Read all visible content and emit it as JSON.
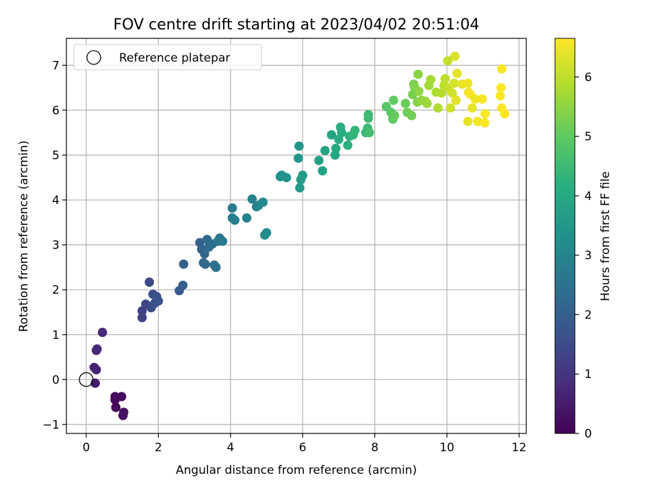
{
  "chart_data": {
    "type": "scatter",
    "title": "FOV centre drift starting at 2023/04/02 20:51:04",
    "xlabel": "Angular distance from reference (arcmin)",
    "ylabel": "Rotation from reference (arcmin)",
    "colorbar_label": "Hours from first FF file",
    "xlim": [
      -0.55,
      12.2
    ],
    "ylim": [
      -1.2,
      7.6
    ],
    "clim": [
      0,
      6.65
    ],
    "colormap": "viridis",
    "grid": true,
    "legend": {
      "position": "top-left",
      "entries": [
        "Reference platepar"
      ]
    },
    "xticks": [
      0,
      2,
      4,
      6,
      8,
      10,
      12
    ],
    "yticks": [
      -1,
      0,
      1,
      2,
      3,
      4,
      5,
      6,
      7
    ],
    "cticks": [
      0,
      1,
      2,
      3,
      4,
      5,
      6
    ],
    "reference_point": {
      "x": 0,
      "y": 0
    },
    "points": [
      [
        0.8,
        -0.45,
        0.1
      ],
      [
        0.8,
        -0.38,
        0.15
      ],
      [
        0.82,
        -0.62,
        0.12
      ],
      [
        0.98,
        -0.38,
        0.2
      ],
      [
        1.02,
        -0.8,
        0.25
      ],
      [
        1.04,
        -0.73,
        0.3
      ],
      [
        0.25,
        -0.08,
        0.55
      ],
      [
        0.22,
        0.27,
        0.6
      ],
      [
        0.28,
        0.22,
        0.65
      ],
      [
        0.28,
        0.65,
        0.7
      ],
      [
        0.3,
        0.68,
        0.75
      ],
      [
        0.45,
        1.05,
        0.8
      ],
      [
        1.55,
        1.53,
        1.3
      ],
      [
        1.55,
        1.38,
        1.35
      ],
      [
        1.65,
        1.68,
        1.4
      ],
      [
        1.75,
        2.17,
        1.45
      ],
      [
        1.8,
        1.6,
        1.5
      ],
      [
        1.85,
        1.9,
        1.55
      ],
      [
        1.9,
        1.7,
        1.6
      ],
      [
        1.95,
        1.85,
        1.65
      ],
      [
        2.0,
        1.75,
        1.7
      ],
      [
        2.58,
        1.98,
        1.9
      ],
      [
        2.68,
        2.1,
        1.95
      ],
      [
        2.7,
        2.57,
        2.0
      ],
      [
        3.15,
        3.05,
        2.05
      ],
      [
        3.2,
        2.9,
        2.1
      ],
      [
        3.25,
        2.6,
        2.15
      ],
      [
        3.28,
        2.8,
        2.2
      ],
      [
        3.3,
        2.57,
        2.25
      ],
      [
        3.35,
        3.12,
        2.3
      ],
      [
        3.4,
        2.95,
        2.35
      ],
      [
        3.5,
        3.02,
        2.4
      ],
      [
        3.55,
        2.55,
        2.45
      ],
      [
        3.6,
        2.5,
        2.5
      ],
      [
        3.65,
        3.08,
        2.55
      ],
      [
        3.7,
        3.15,
        2.6
      ],
      [
        3.78,
        3.08,
        2.65
      ],
      [
        4.05,
        3.82,
        2.75
      ],
      [
        4.05,
        3.6,
        2.8
      ],
      [
        4.12,
        3.55,
        2.85
      ],
      [
        4.45,
        3.6,
        2.9
      ],
      [
        4.6,
        4.02,
        2.95
      ],
      [
        4.72,
        3.85,
        3.0
      ],
      [
        4.78,
        3.88,
        3.05
      ],
      [
        4.9,
        3.95,
        3.1
      ],
      [
        4.95,
        3.22,
        3.15
      ],
      [
        5.0,
        3.27,
        3.2
      ],
      [
        5.38,
        4.52,
        3.3
      ],
      [
        5.42,
        4.55,
        3.35
      ],
      [
        5.55,
        4.5,
        3.4
      ],
      [
        5.88,
        4.93,
        3.45
      ],
      [
        5.9,
        5.2,
        3.5
      ],
      [
        5.92,
        4.27,
        3.55
      ],
      [
        5.95,
        4.45,
        3.6
      ],
      [
        6.0,
        4.55,
        3.65
      ],
      [
        6.45,
        4.88,
        3.75
      ],
      [
        6.55,
        4.65,
        3.8
      ],
      [
        6.62,
        5.1,
        3.85
      ],
      [
        6.8,
        5.45,
        3.9
      ],
      [
        6.9,
        5.0,
        3.95
      ],
      [
        6.92,
        5.15,
        4.0
      ],
      [
        7.0,
        5.35,
        4.05
      ],
      [
        7.05,
        5.62,
        4.1
      ],
      [
        7.08,
        5.5,
        4.15
      ],
      [
        7.25,
        5.22,
        4.2
      ],
      [
        7.3,
        5.42,
        4.25
      ],
      [
        7.4,
        5.45,
        4.3
      ],
      [
        7.45,
        5.55,
        4.35
      ],
      [
        7.75,
        5.5,
        4.4
      ],
      [
        7.8,
        5.6,
        4.45
      ],
      [
        7.82,
        5.9,
        4.5
      ],
      [
        7.82,
        5.82,
        4.55
      ],
      [
        7.85,
        5.5,
        4.6
      ],
      [
        8.32,
        6.08,
        4.85
      ],
      [
        8.45,
        5.95,
        4.9
      ],
      [
        8.5,
        5.8,
        4.95
      ],
      [
        8.52,
        6.22,
        5.0
      ],
      [
        8.55,
        5.88,
        5.05
      ],
      [
        8.85,
        6.15,
        5.1
      ],
      [
        8.9,
        5.95,
        5.15
      ],
      [
        9.02,
        5.88,
        5.2
      ],
      [
        9.05,
        6.35,
        5.25
      ],
      [
        9.08,
        6.58,
        5.3
      ],
      [
        9.1,
        6.52,
        5.35
      ],
      [
        9.18,
        6.18,
        5.4
      ],
      [
        9.2,
        6.8,
        5.45
      ],
      [
        9.22,
        6.42,
        5.5
      ],
      [
        9.3,
        6.22,
        5.55
      ],
      [
        9.4,
        6.2,
        5.6
      ],
      [
        9.45,
        6.15,
        5.65
      ],
      [
        9.5,
        6.55,
        5.7
      ],
      [
        9.55,
        6.68,
        5.75
      ],
      [
        9.7,
        6.4,
        5.8
      ],
      [
        9.75,
        6.05,
        5.85
      ],
      [
        9.85,
        6.38,
        5.9
      ],
      [
        9.92,
        6.55,
        5.95
      ],
      [
        9.95,
        6.7,
        6.0
      ],
      [
        10.02,
        7.1,
        6.05
      ],
      [
        10.05,
        6.5,
        6.1
      ],
      [
        10.1,
        6.05,
        6.15
      ],
      [
        10.15,
        6.38,
        6.2
      ],
      [
        10.2,
        6.6,
        6.25
      ],
      [
        10.22,
        7.2,
        6.3
      ],
      [
        10.25,
        6.22,
        6.35
      ],
      [
        10.28,
        6.82,
        6.4
      ],
      [
        10.42,
        6.58,
        6.45
      ],
      [
        10.58,
        6.6,
        6.5
      ],
      [
        10.6,
        6.4,
        6.55
      ],
      [
        10.65,
        6.35,
        6.6
      ],
      [
        10.58,
        5.75,
        6.4
      ],
      [
        10.7,
        6.05,
        6.45
      ],
      [
        10.78,
        6.25,
        6.5
      ],
      [
        10.85,
        5.75,
        6.55
      ],
      [
        10.98,
        6.25,
        6.6
      ],
      [
        11.05,
        5.72,
        6.62
      ],
      [
        11.06,
        5.92,
        6.63
      ],
      [
        11.52,
        6.92,
        6.64
      ],
      [
        11.5,
        6.5,
        6.64
      ],
      [
        11.48,
        6.32,
        6.64
      ],
      [
        11.52,
        6.05,
        6.64
      ],
      [
        11.6,
        5.92,
        6.65
      ]
    ]
  }
}
